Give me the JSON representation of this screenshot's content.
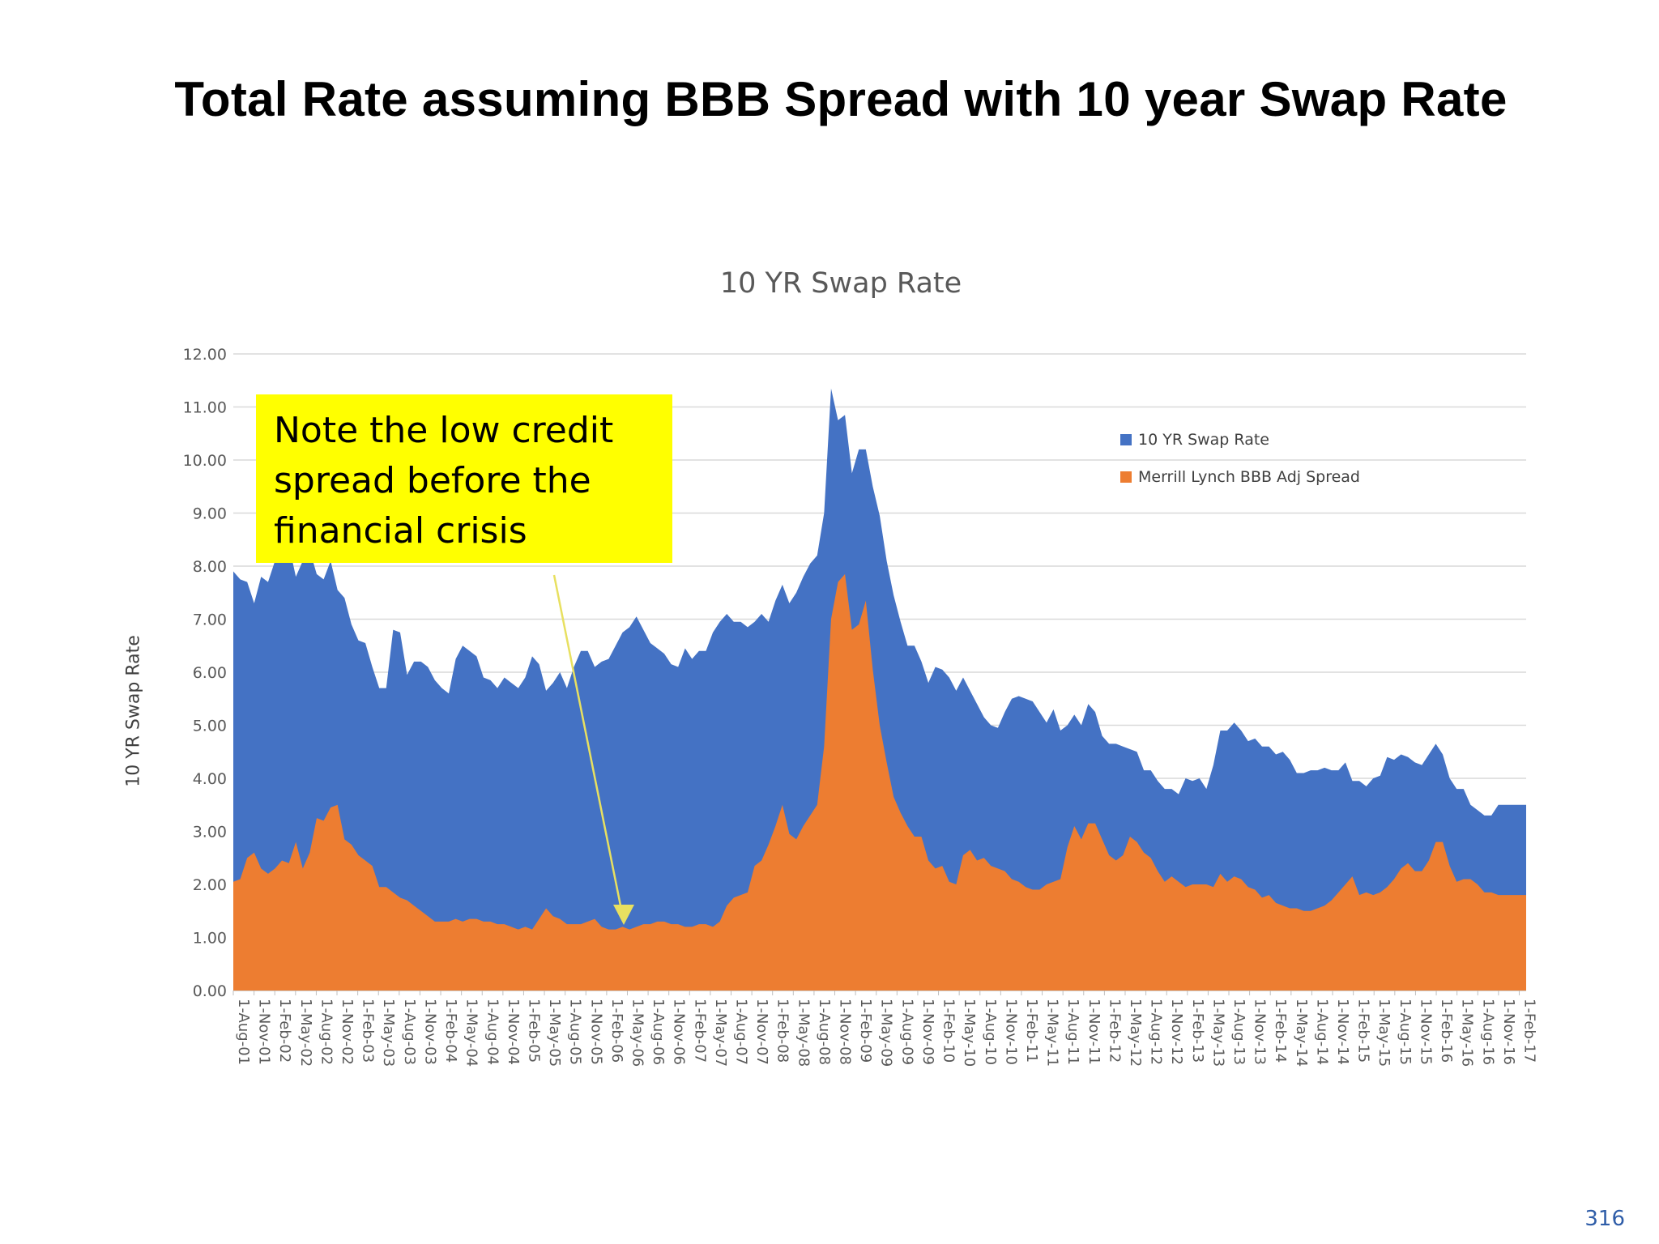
{
  "slide": {
    "title": "Total Rate assuming BBB Spread with 10 year Swap Rate",
    "page_number": "316"
  },
  "note": "Note the low credit spread before the financial crisis",
  "colors": {
    "swap": "#4472c4",
    "spread": "#ed7d31",
    "note_bg": "#ffff00",
    "arrow": "#e8e060",
    "grid": "#d9d9d9"
  },
  "chart_data": {
    "type": "area",
    "title": "10 YR Swap Rate",
    "ylabel": "10 YR Swap Rate",
    "xlabel": "",
    "ylim": [
      0,
      12
    ],
    "y_ticks": [
      "0.00",
      "1.00",
      "2.00",
      "3.00",
      "4.00",
      "5.00",
      "6.00",
      "7.00",
      "8.00",
      "9.00",
      "10.00",
      "11.00",
      "12.00"
    ],
    "grid": true,
    "legend_position": "top-right",
    "x_ticks": [
      "1-Aug-01",
      "1-Nov-01",
      "1-Feb-02",
      "1-May-02",
      "1-Aug-02",
      "1-Nov-02",
      "1-Feb-03",
      "1-May-03",
      "1-Aug-03",
      "1-Nov-03",
      "1-Feb-04",
      "1-May-04",
      "1-Aug-04",
      "1-Nov-04",
      "1-Feb-05",
      "1-May-05",
      "1-Aug-05",
      "1-Nov-05",
      "1-Feb-06",
      "1-May-06",
      "1-Aug-06",
      "1-Nov-06",
      "1-Feb-07",
      "1-May-07",
      "1-Aug-07",
      "1-Nov-07",
      "1-Feb-08",
      "1-May-08",
      "1-Aug-08",
      "1-Nov-08",
      "1-Feb-09",
      "1-May-09",
      "1-Aug-09",
      "1-Nov-09",
      "1-Feb-10",
      "1-May-10",
      "1-Aug-10",
      "1-Nov-10",
      "1-Feb-11",
      "1-May-11",
      "1-Aug-11",
      "1-Nov-11",
      "1-Feb-12",
      "1-May-12",
      "1-Aug-12",
      "1-Nov-12",
      "1-Feb-13",
      "1-May-13",
      "1-Aug-13",
      "1-Nov-13",
      "1-Feb-14",
      "1-May-14",
      "1-Aug-14",
      "1-Nov-14",
      "1-Feb-15",
      "1-May-15",
      "1-Aug-15",
      "1-Nov-15",
      "1-Feb-16",
      "1-May-16",
      "1-Aug-16",
      "1-Nov-16",
      "1-Feb-17"
    ],
    "series": [
      {
        "name": "10 YR Swap Rate",
        "values": [
          7.9,
          7.75,
          7.7,
          7.3,
          7.8,
          7.7,
          8.1,
          8.3,
          8.4,
          7.8,
          8.1,
          8.3,
          7.85,
          7.75,
          8.1,
          7.55,
          7.4,
          6.9,
          6.6,
          6.55,
          6.1,
          5.7,
          5.7,
          6.8,
          6.75,
          5.95,
          6.2,
          6.2,
          6.1,
          5.85,
          5.7,
          5.6,
          6.25,
          6.5,
          6.4,
          6.3,
          5.9,
          5.85,
          5.7,
          5.9,
          5.8,
          5.7,
          5.9,
          6.3,
          6.15,
          5.65,
          5.8,
          6.0,
          5.7,
          6.1,
          6.4,
          6.4,
          6.1,
          6.2,
          6.25,
          6.5,
          6.75,
          6.85,
          7.05,
          6.8,
          6.55,
          6.45,
          6.35,
          6.15,
          6.1,
          6.45,
          6.25,
          6.4,
          6.4,
          6.75,
          6.95,
          7.1,
          6.95,
          6.95,
          6.85,
          6.95,
          7.1,
          6.95,
          7.35,
          7.65,
          7.3,
          7.5,
          7.8,
          8.05,
          8.2,
          9.0,
          11.35,
          10.75,
          10.85,
          9.75,
          10.2,
          10.2,
          9.5,
          8.95,
          8.1,
          7.45,
          6.95,
          6.5,
          6.5,
          6.2,
          5.8,
          6.1,
          6.05,
          5.9,
          5.65,
          5.9,
          5.65,
          5.4,
          5.15,
          5.0,
          4.95,
          5.25,
          5.5,
          5.55,
          5.5,
          5.45,
          5.25,
          5.05,
          5.3,
          4.9,
          5.0,
          5.2,
          5.0,
          5.4,
          5.25,
          4.8,
          4.65,
          4.65,
          4.6,
          4.55,
          4.5,
          4.15,
          4.15,
          3.95,
          3.8,
          3.8,
          3.7,
          4.0,
          3.95,
          4.0,
          3.8,
          4.25,
          4.9,
          4.9,
          5.05,
          4.9,
          4.7,
          4.75,
          4.6,
          4.6,
          4.45,
          4.5,
          4.35,
          4.1,
          4.1,
          4.15,
          4.15,
          4.2,
          4.15,
          4.15,
          4.3,
          3.95,
          3.95,
          3.85,
          4.0,
          4.05,
          4.4,
          4.35,
          4.45,
          4.4,
          4.3,
          4.25,
          4.45,
          4.65,
          4.45,
          4.0,
          3.8,
          3.8,
          3.5,
          3.4,
          3.3,
          3.3,
          3.5,
          3.5,
          3.5,
          3.5,
          3.5
        ]
      },
      {
        "name": "Merrill Lynch BBB Adj Spread",
        "values": [
          2.05,
          2.1,
          2.5,
          2.6,
          2.3,
          2.2,
          2.3,
          2.45,
          2.4,
          2.8,
          2.3,
          2.6,
          3.25,
          3.2,
          3.45,
          3.5,
          2.85,
          2.75,
          2.55,
          2.45,
          2.35,
          1.95,
          1.95,
          1.85,
          1.75,
          1.7,
          1.6,
          1.5,
          1.4,
          1.3,
          1.3,
          1.3,
          1.35,
          1.3,
          1.35,
          1.35,
          1.3,
          1.3,
          1.25,
          1.25,
          1.2,
          1.15,
          1.2,
          1.15,
          1.35,
          1.55,
          1.4,
          1.35,
          1.25,
          1.25,
          1.25,
          1.3,
          1.35,
          1.2,
          1.15,
          1.15,
          1.2,
          1.15,
          1.2,
          1.25,
          1.25,
          1.3,
          1.3,
          1.25,
          1.25,
          1.2,
          1.2,
          1.25,
          1.25,
          1.2,
          1.3,
          1.6,
          1.75,
          1.8,
          1.85,
          2.35,
          2.45,
          2.75,
          3.1,
          3.5,
          2.95,
          2.85,
          3.1,
          3.3,
          3.5,
          4.6,
          7.0,
          7.7,
          7.85,
          6.8,
          6.9,
          7.35,
          6.05,
          5.0,
          4.3,
          3.65,
          3.35,
          3.1,
          2.9,
          2.9,
          2.45,
          2.3,
          2.35,
          2.05,
          2.0,
          2.55,
          2.65,
          2.45,
          2.5,
          2.35,
          2.3,
          2.25,
          2.1,
          2.05,
          1.95,
          1.9,
          1.9,
          2.0,
          2.05,
          2.1,
          2.7,
          3.1,
          2.85,
          3.15,
          3.15,
          2.85,
          2.55,
          2.45,
          2.55,
          2.9,
          2.8,
          2.6,
          2.5,
          2.25,
          2.05,
          2.15,
          2.05,
          1.95,
          2.0,
          2.0,
          2.0,
          1.95,
          2.2,
          2.05,
          2.15,
          2.1,
          1.95,
          1.9,
          1.75,
          1.8,
          1.65,
          1.6,
          1.55,
          1.55,
          1.5,
          1.5,
          1.55,
          1.6,
          1.7,
          1.85,
          2.0,
          2.15,
          1.8,
          1.85,
          1.8,
          1.85,
          1.95,
          2.1,
          2.3,
          2.4,
          2.25,
          2.25,
          2.45,
          2.8,
          2.8,
          2.35,
          2.05,
          2.1,
          2.1,
          2.0,
          1.85,
          1.85,
          1.8,
          1.8,
          1.8,
          1.8,
          1.8
        ]
      }
    ]
  }
}
